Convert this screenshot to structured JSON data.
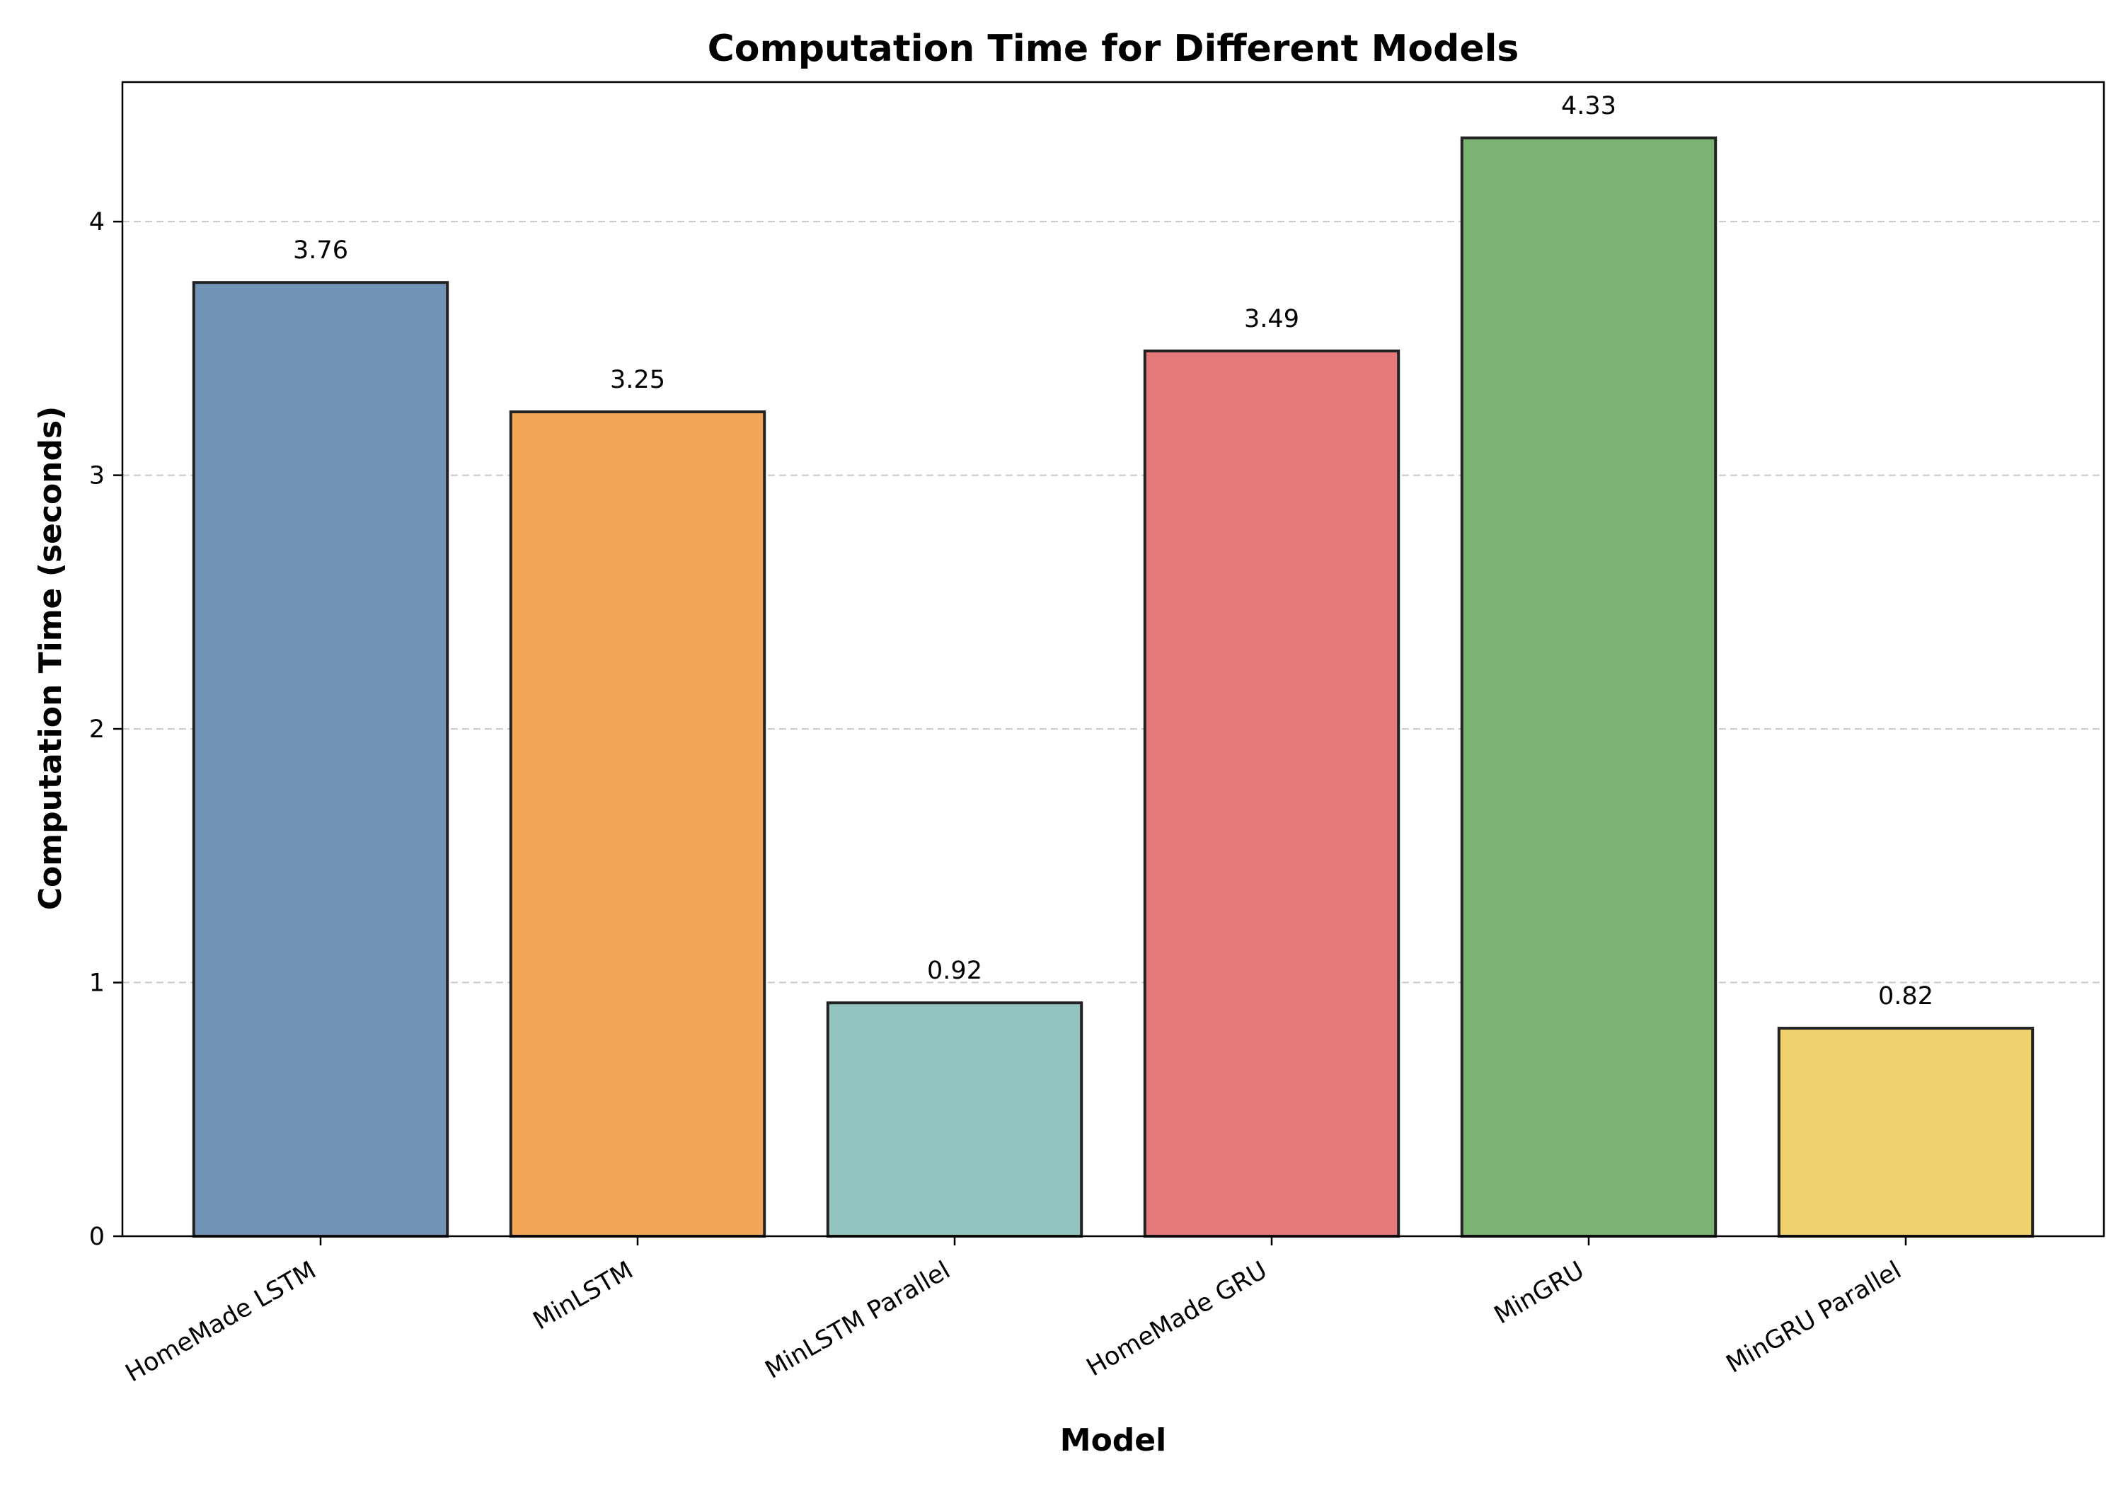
{
  "chart_data": {
    "type": "bar",
    "title": "Computation Time for Different Models",
    "xlabel": "Model",
    "ylabel": "Computation Time (seconds)",
    "categories": [
      "HomeMade LSTM",
      "MinLSTM",
      "MinLSTM Parallel",
      "HomeMade GRU",
      "MinGRU",
      "MinGRU Parallel"
    ],
    "values": [
      3.76,
      3.25,
      0.92,
      3.49,
      4.33,
      0.82
    ],
    "value_labels": [
      "3.76",
      "3.25",
      "0.92",
      "3.49",
      "4.33",
      "0.82"
    ],
    "colors": [
      "#7193b5",
      "#f2a557",
      "#94c4c0",
      "#e6797a",
      "#7bb472",
      "#efd26d"
    ],
    "edge_color": "#222222",
    "ylim": [
      0,
      4.55
    ],
    "yticks": [
      0,
      1,
      2,
      3,
      4
    ],
    "ytick_labels": [
      "0",
      "1",
      "2",
      "3",
      "4"
    ],
    "grid": "y-dashed",
    "legend": "none"
  }
}
